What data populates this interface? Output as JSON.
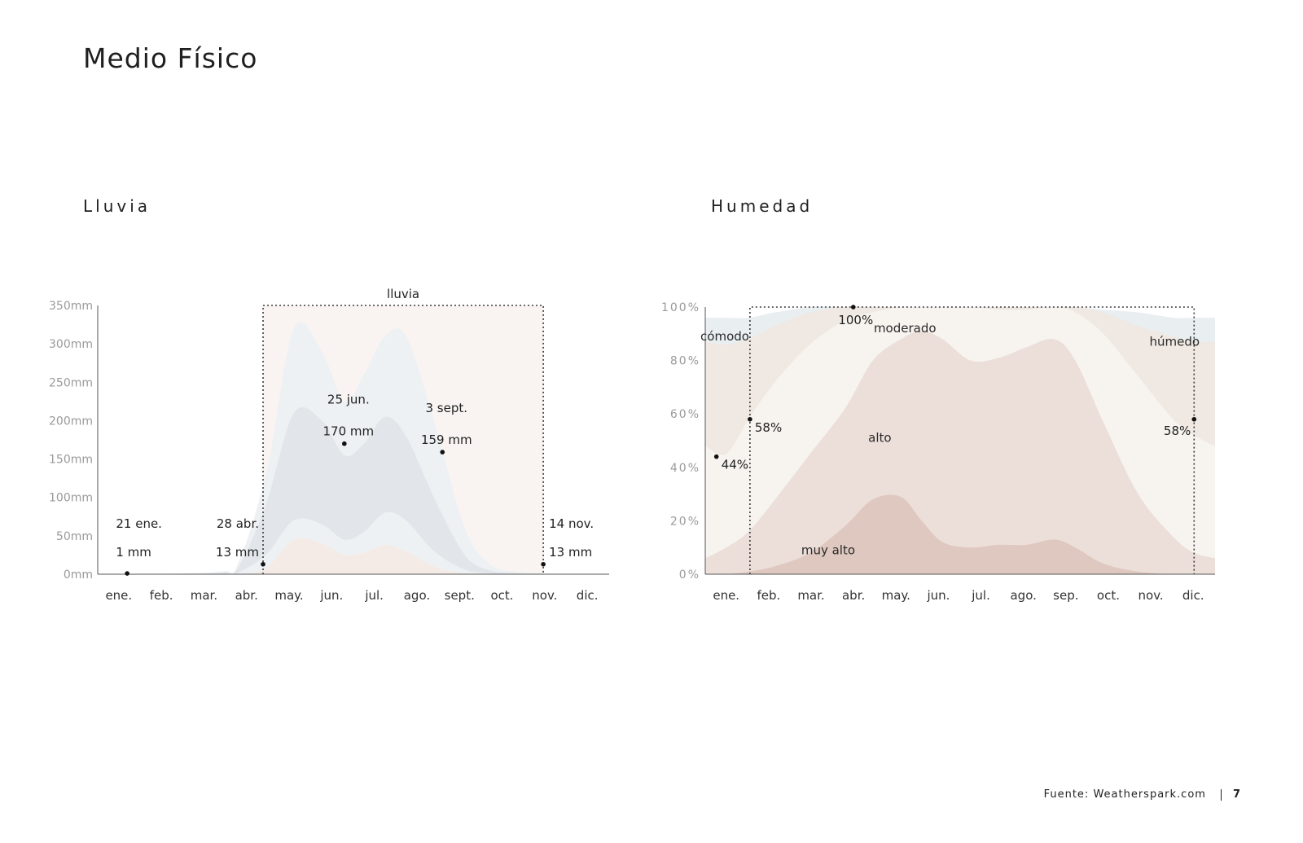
{
  "page": {
    "title": "Medio Físico",
    "source": "Fuente: Weatherspark.com",
    "page_number": "7"
  },
  "chart_data": [
    {
      "type": "area",
      "title": "Lluvia",
      "ylabel": "",
      "xlabel": "",
      "ylim": [
        0,
        350
      ],
      "yticks": [
        "350mm",
        "300mm",
        "250mm",
        "200mm",
        "150mm",
        "100mm",
        "50mm",
        "0mm"
      ],
      "ytick_values": [
        350,
        300,
        250,
        200,
        150,
        100,
        50,
        0
      ],
      "months": [
        "ene.",
        "feb.",
        "mar.",
        "abr.",
        "may.",
        "jun.",
        "jul.",
        "ago.",
        "sept.",
        "oct.",
        "nov.",
        "dic."
      ],
      "x_day": [
        1,
        30,
        60,
        90,
        100,
        120,
        140,
        160,
        176,
        190,
        205,
        220,
        240,
        262,
        280,
        300,
        318,
        335,
        365
      ],
      "bands": [
        {
          "upper": [
            0,
            0,
            1,
            4,
            13,
            130,
            320,
            290,
            225,
            260,
            310,
            310,
            200,
            60,
            13,
            3,
            1,
            0,
            0
          ],
          "color": "#eef1f4"
        },
        {
          "upper": [
            0,
            0,
            0,
            2,
            8,
            90,
            210,
            200,
            155,
            170,
            205,
            180,
            100,
            25,
            5,
            1,
            0,
            0,
            0
          ],
          "color": "#e2e6ea"
        },
        {
          "upper": [
            0,
            0,
            0,
            0,
            2,
            25,
            70,
            65,
            45,
            55,
            80,
            70,
            30,
            6,
            1,
            0,
            0,
            0,
            0
          ],
          "color": "#eef1f4"
        },
        {
          "upper": [
            0,
            0,
            0,
            0,
            0,
            8,
            45,
            40,
            25,
            28,
            38,
            30,
            10,
            1,
            0,
            0,
            0,
            0,
            0
          ],
          "color": "#f5ebe6"
        }
      ],
      "season_box": {
        "label": "lluvia",
        "start_day": 118,
        "end_day": 318
      },
      "annotations": [
        {
          "day": 21,
          "value": 1,
          "line1": "21 ene.",
          "line2": "1 mm",
          "anchor": "start",
          "pos": "left-low"
        },
        {
          "day": 118,
          "value": 13,
          "line1": "28 abr.",
          "line2": "13 mm",
          "anchor": "end",
          "pos": "low"
        },
        {
          "day": 176,
          "value": 170,
          "line1": "25 jun.",
          "line2": "170 mm",
          "anchor": "middle",
          "pos": "high"
        },
        {
          "day": 246,
          "value": 159,
          "line1": "3 sept.",
          "line2": "159 mm",
          "anchor": "middle",
          "pos": "high"
        },
        {
          "day": 318,
          "value": 13,
          "line1": "14 nov.",
          "line2": "13 mm",
          "anchor": "start",
          "pos": "low"
        }
      ]
    },
    {
      "type": "area",
      "title": "Humedad",
      "ylim": [
        0,
        100
      ],
      "yticks": [
        "100%",
        "80%",
        "60%",
        "40%",
        "20%",
        "0%"
      ],
      "ytick_values": [
        100,
        80,
        60,
        40,
        20,
        0
      ],
      "months": [
        "ene.",
        "feb.",
        "mar.",
        "abr.",
        "may.",
        "jun.",
        "jul.",
        "ago.",
        "sep.",
        "oct.",
        "nov.",
        "dic."
      ],
      "x_day": [
        0,
        15,
        31,
        50,
        75,
        100,
        120,
        140,
        155,
        170,
        190,
        210,
        230,
        250,
        265,
        285,
        310,
        335,
        350,
        365
      ],
      "bands": [
        {
          "upper": [
            96,
            96,
            96,
            98,
            100,
            100,
            100,
            100,
            100,
            100,
            100,
            100,
            100,
            100,
            100,
            99,
            98,
            96,
            96,
            96
          ],
          "color": "#e9eef1"
        },
        {
          "upper": [
            87,
            86,
            88,
            93,
            98,
            100,
            100,
            100,
            100,
            100,
            100,
            100,
            100,
            100,
            100,
            98,
            93,
            89,
            87,
            87
          ],
          "color": "#efe8e3"
        },
        {
          "upper": [
            48,
            45,
            58,
            72,
            86,
            95,
            98,
            100,
            100,
            100,
            100,
            99,
            99,
            100,
            98,
            90,
            74,
            58,
            52,
            48
          ],
          "color": "#f7f4ef"
        },
        {
          "upper": [
            6,
            10,
            16,
            28,
            45,
            62,
            80,
            88,
            91,
            88,
            80,
            81,
            85,
            88,
            80,
            57,
            30,
            14,
            8,
            6
          ],
          "color": "#ecdfda"
        },
        {
          "upper": [
            0,
            0,
            1,
            3,
            8,
            18,
            28,
            29,
            20,
            12,
            10,
            11,
            11,
            13,
            10,
            4,
            1,
            0,
            0,
            0
          ],
          "color": "#dfc8bf"
        }
      ],
      "season_box": {
        "start_day": 32,
        "end_day": 350
      },
      "band_labels": [
        {
          "text": "cómodo",
          "day": 14,
          "value": 89,
          "anchor": "middle"
        },
        {
          "text": "moderado",
          "day": 143,
          "value": 92,
          "anchor": "middle"
        },
        {
          "text": "húmedo",
          "day": 336,
          "value": 87,
          "anchor": "middle"
        },
        {
          "text": "alto",
          "day": 125,
          "value": 51,
          "anchor": "middle"
        },
        {
          "text": "muy alto",
          "day": 88,
          "value": 9,
          "anchor": "middle"
        }
      ],
      "annotations": [
        {
          "day": 8,
          "value": 44,
          "label": "44%",
          "pos": "right-below"
        },
        {
          "day": 32,
          "value": 58,
          "label": "58%",
          "pos": "right-below"
        },
        {
          "day": 106,
          "value": 100,
          "label": "100%",
          "pos": "below"
        },
        {
          "day": 350,
          "value": 58,
          "label": "58%",
          "pos": "left-below"
        }
      ]
    }
  ]
}
